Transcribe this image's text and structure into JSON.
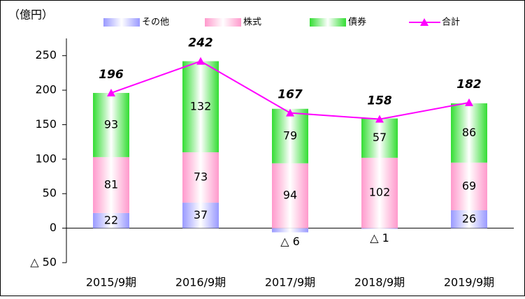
{
  "chart_data": {
    "type": "bar",
    "stacked": true,
    "y_label": "（億円）",
    "categories": [
      "2015/9期",
      "2016/9期",
      "2017/9期",
      "2018/9期",
      "2019/9期"
    ],
    "series": [
      {
        "name": "その他",
        "color": "#9999ff",
        "values": [
          22,
          37,
          -6,
          -1,
          26
        ],
        "value_labels": [
          "22",
          "37",
          "△ 6",
          "△ 1",
          "26"
        ]
      },
      {
        "name": "株式",
        "color": "#ff99cc",
        "values": [
          81,
          73,
          94,
          102,
          69
        ]
      },
      {
        "name": "債券",
        "color": "#33dd33",
        "values": [
          93,
          132,
          79,
          57,
          86
        ]
      },
      {
        "name": "合計",
        "type": "line",
        "color": "#ff00ff",
        "values": [
          196,
          242,
          167,
          158,
          182
        ]
      }
    ],
    "ylim": [
      -50,
      275
    ],
    "yticks": [
      {
        "value": -50,
        "label": "△ 50"
      },
      0,
      50,
      100,
      150,
      200,
      250
    ],
    "grid": false,
    "legend": "top"
  }
}
